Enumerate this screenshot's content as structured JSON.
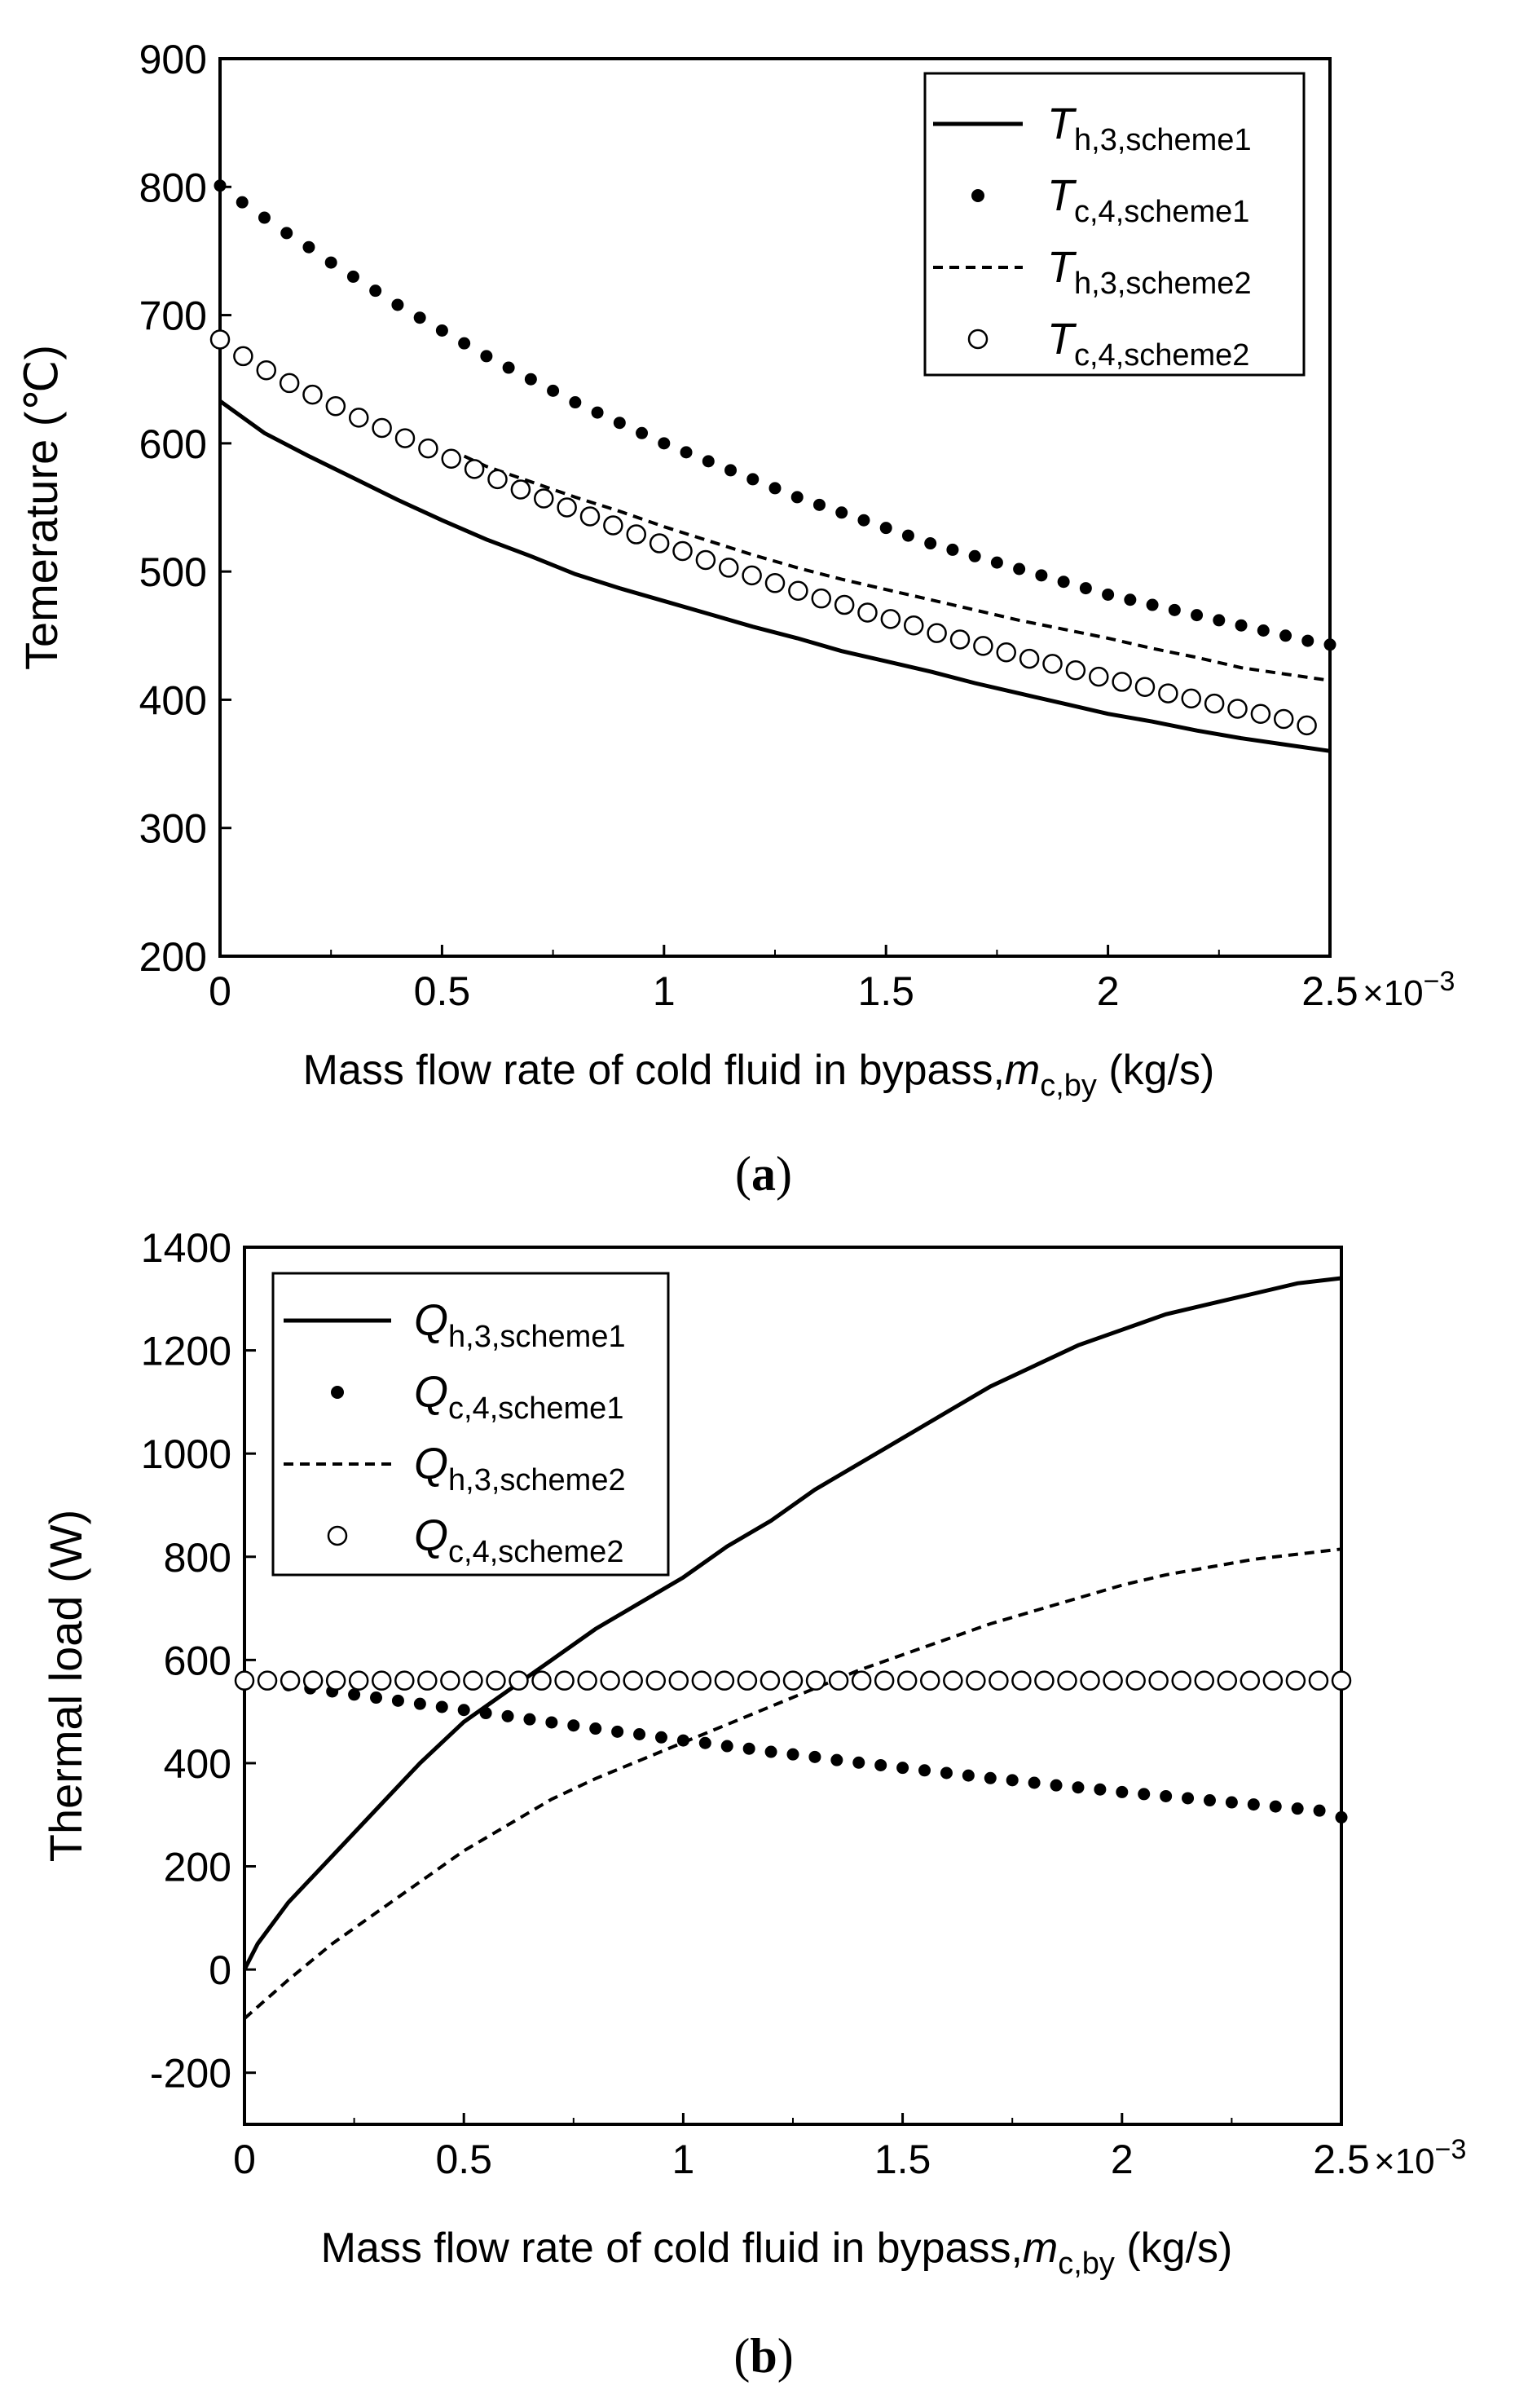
{
  "chart_data": [
    {
      "type": "line",
      "panel_label": "(a)",
      "title": "",
      "xlabel_prefix": "Mass flow rate of cold fluid in bypass,",
      "xlabel_var": "m",
      "xlabel_sub": "c,by",
      "xlabel_suffix": " (kg/s)",
      "ylabel": "Temerature (℃)",
      "x_multiplier_text": "×10",
      "x_multiplier_exp": "−3",
      "xlim": [
        0,
        2.5
      ],
      "ylim": [
        200,
        900
      ],
      "xticks": [
        0,
        0.5,
        1,
        1.5,
        2,
        2.5
      ],
      "xtick_labels": [
        "0",
        "0.5",
        "1",
        "1.5",
        "2",
        "2.5"
      ],
      "yticks": [
        200,
        300,
        400,
        500,
        600,
        700,
        800,
        900
      ],
      "ytick_labels": [
        "200",
        "300",
        "400",
        "500",
        "600",
        "700",
        "800",
        "900"
      ],
      "legend_position": "top-right",
      "series": [
        {
          "name": "T_h,3,scheme1",
          "label_var": "T",
          "label_sub": "h,3,scheme1",
          "style": "solid",
          "x": [
            0,
            0.1,
            0.2,
            0.3,
            0.4,
            0.5,
            0.6,
            0.7,
            0.8,
            0.9,
            1.0,
            1.1,
            1.2,
            1.3,
            1.4,
            1.5,
            1.6,
            1.7,
            1.8,
            1.9,
            2.0,
            2.1,
            2.2,
            2.3,
            2.4,
            2.5
          ],
          "values": [
            633,
            608,
            590,
            573,
            556,
            540,
            525,
            512,
            498,
            487,
            477,
            467,
            457,
            448,
            438,
            430,
            422,
            413,
            405,
            397,
            389,
            383,
            376,
            370,
            365,
            360
          ]
        },
        {
          "name": "T_c,4,scheme1",
          "label_var": "T",
          "label_sub": "c,4,scheme1",
          "style": "filled-dots",
          "x": [
            0,
            0.05,
            0.1,
            0.15,
            0.2,
            0.25,
            0.3,
            0.35,
            0.4,
            0.45,
            0.5,
            0.55,
            0.6,
            0.65,
            0.7,
            0.75,
            0.8,
            0.85,
            0.9,
            0.95,
            1.0,
            1.05,
            1.1,
            1.15,
            1.2,
            1.25,
            1.3,
            1.35,
            1.4,
            1.45,
            1.5,
            1.55,
            1.6,
            1.65,
            1.7,
            1.75,
            1.8,
            1.85,
            1.9,
            1.95,
            2.0,
            2.05,
            2.1,
            2.15,
            2.2,
            2.25,
            2.3,
            2.35,
            2.4,
            2.45,
            2.5
          ],
          "values": [
            801,
            788,
            776,
            764,
            753,
            741,
            730,
            719,
            708,
            698,
            688,
            678,
            668,
            659,
            650,
            641,
            632,
            624,
            616,
            608,
            600,
            593,
            586,
            579,
            572,
            565,
            558,
            552,
            546,
            540,
            534,
            528,
            522,
            517,
            512,
            507,
            502,
            497,
            492,
            487,
            482,
            478,
            474,
            470,
            466,
            462,
            458,
            454,
            450,
            446,
            443
          ]
        },
        {
          "name": "T_h,3,scheme2",
          "label_var": "T",
          "label_sub": "h,3,scheme2",
          "style": "dashed",
          "x": [
            0.55,
            0.6,
            0.7,
            0.8,
            0.9,
            1.0,
            1.1,
            1.2,
            1.3,
            1.4,
            1.5,
            1.6,
            1.7,
            1.8,
            1.9,
            2.0,
            2.1,
            2.2,
            2.3,
            2.4,
            2.5
          ],
          "values": [
            590,
            582,
            570,
            558,
            547,
            535,
            524,
            513,
            503,
            494,
            486,
            478,
            470,
            462,
            455,
            448,
            440,
            433,
            425,
            420,
            415
          ]
        },
        {
          "name": "T_c,4,scheme2",
          "label_var": "T",
          "label_sub": "c,4,scheme2",
          "style": "open-circles",
          "x": [
            0.0,
            0.0521,
            0.1042,
            0.1563,
            0.2083,
            0.2604,
            0.3125,
            0.3646,
            0.4167,
            0.4688,
            0.5208,
            0.5729,
            0.625,
            0.6771,
            0.7292,
            0.7813,
            0.8333,
            0.8854,
            0.9375,
            0.9896,
            1.0417,
            1.0938,
            1.1458,
            1.1979,
            1.25,
            1.3021,
            1.3542,
            1.4063,
            1.4583,
            1.5104,
            1.5625,
            1.6146,
            1.6667,
            1.7188,
            1.7708,
            1.8229,
            1.875,
            1.9271,
            1.9792,
            2.0313,
            2.0833,
            2.1354,
            2.1875,
            2.2396,
            2.2917,
            2.3438,
            2.3958,
            2.4479
          ],
          "values": [
            681,
            668,
            657,
            647,
            638,
            629,
            620,
            612,
            604,
            596,
            588,
            580,
            572,
            564,
            557,
            550,
            543,
            536,
            529,
            522,
            516,
            509,
            503,
            497,
            491,
            485,
            479,
            474,
            468,
            463,
            458,
            452,
            447,
            442,
            437,
            432,
            428,
            423,
            418,
            414,
            410,
            405,
            401,
            397,
            393,
            389,
            385,
            380
          ]
        }
      ]
    },
    {
      "type": "line",
      "panel_label": "(b)",
      "title": "",
      "xlabel_prefix": "Mass flow rate of cold fluid in bypass,",
      "xlabel_var": "m",
      "xlabel_sub": "c,by",
      "xlabel_suffix": " (kg/s)",
      "ylabel": "Thermal load (W)",
      "x_multiplier_text": "×10",
      "x_multiplier_exp": "−3",
      "xlim": [
        0,
        2.5
      ],
      "ylim": [
        -300,
        1400
      ],
      "xticks": [
        0,
        0.5,
        1,
        1.5,
        2,
        2.5
      ],
      "xtick_labels": [
        "0",
        "0.5",
        "1",
        "1.5",
        "2",
        "2.5"
      ],
      "yticks": [
        -200,
        0,
        200,
        400,
        600,
        800,
        1000,
        1200,
        1400
      ],
      "ytick_labels": [
        "-200",
        "0",
        "200",
        "400",
        "600",
        "800",
        "1000",
        "1200",
        "1400"
      ],
      "legend_position": "top-left",
      "series": [
        {
          "name": "Q_h,3,scheme1",
          "label_var": "Q",
          "label_sub": "h,3,scheme1",
          "style": "solid",
          "x": [
            0,
            0.03,
            0.1,
            0.2,
            0.3,
            0.4,
            0.5,
            0.6,
            0.7,
            0.8,
            0.9,
            1.0,
            1.1,
            1.2,
            1.3,
            1.4,
            1.5,
            1.6,
            1.7,
            1.8,
            1.9,
            2.0,
            2.1,
            2.2,
            2.3,
            2.4,
            2.5
          ],
          "values": [
            0,
            50,
            130,
            220,
            310,
            400,
            480,
            540,
            600,
            660,
            710,
            760,
            820,
            870,
            930,
            980,
            1030,
            1080,
            1130,
            1170,
            1210,
            1240,
            1270,
            1290,
            1310,
            1330,
            1340
          ]
        },
        {
          "name": "Q_c,4,scheme1",
          "label_var": "Q",
          "label_sub": "c,4,scheme1",
          "style": "filled-dots",
          "x": [
            0,
            0.05,
            0.1,
            0.15,
            0.2,
            0.25,
            0.3,
            0.35,
            0.4,
            0.45,
            0.5,
            0.55,
            0.6,
            0.65,
            0.7,
            0.75,
            0.8,
            0.85,
            0.9,
            0.95,
            1.0,
            1.05,
            1.1,
            1.15,
            1.2,
            1.25,
            1.3,
            1.35,
            1.4,
            1.45,
            1.5,
            1.55,
            1.6,
            1.65,
            1.7,
            1.75,
            1.8,
            1.85,
            1.9,
            1.95,
            2.0,
            2.05,
            2.1,
            2.15,
            2.2,
            2.25,
            2.3,
            2.35,
            2.4,
            2.45,
            2.5
          ],
          "values": [
            562,
            557,
            551,
            545,
            539,
            533,
            527,
            521,
            515,
            509,
            503,
            497,
            491,
            485,
            479,
            473,
            467,
            461,
            456,
            450,
            444,
            439,
            433,
            428,
            422,
            417,
            412,
            406,
            401,
            396,
            391,
            386,
            381,
            376,
            371,
            367,
            362,
            357,
            353,
            349,
            344,
            340,
            336,
            332,
            328,
            324,
            320,
            316,
            312,
            308,
            295
          ]
        },
        {
          "name": "Q_h,3,scheme2",
          "label_var": "Q",
          "label_sub": "h,3,scheme2",
          "style": "dashed",
          "x": [
            0,
            0.1,
            0.2,
            0.3,
            0.4,
            0.5,
            0.6,
            0.7,
            0.8,
            0.9,
            1.0,
            1.1,
            1.2,
            1.3,
            1.4,
            1.5,
            1.6,
            1.7,
            1.8,
            1.9,
            2.0,
            2.1,
            2.2,
            2.3,
            2.4,
            2.5
          ],
          "values": [
            -95,
            -20,
            50,
            110,
            170,
            230,
            280,
            330,
            370,
            405,
            440,
            475,
            510,
            545,
            580,
            610,
            640,
            670,
            695,
            720,
            745,
            765,
            780,
            795,
            805,
            815
          ]
        },
        {
          "name": "Q_c,4,scheme2",
          "label_var": "Q",
          "label_sub": "c,4,scheme2",
          "style": "open-circles",
          "x": [
            0.0,
            0.0521,
            0.1042,
            0.1563,
            0.2083,
            0.2604,
            0.3125,
            0.3646,
            0.4167,
            0.4688,
            0.5208,
            0.5729,
            0.625,
            0.6771,
            0.7292,
            0.7813,
            0.8333,
            0.8854,
            0.9375,
            0.9896,
            1.0417,
            1.0938,
            1.1458,
            1.1979,
            1.25,
            1.3021,
            1.3542,
            1.4063,
            1.4583,
            1.5104,
            1.5625,
            1.6146,
            1.6667,
            1.7188,
            1.7708,
            1.8229,
            1.875,
            1.9271,
            1.9792,
            2.0313,
            2.0833,
            2.1354,
            2.1875,
            2.2396,
            2.2917,
            2.3438,
            2.3958,
            2.4479,
            2.5
          ],
          "values": [
            560,
            560,
            560,
            560,
            560,
            560,
            560,
            560,
            560,
            560,
            560,
            560,
            560,
            560,
            560,
            560,
            560,
            560,
            560,
            560,
            560,
            560,
            560,
            560,
            560,
            560,
            560,
            560,
            560,
            560,
            560,
            560,
            560,
            560,
            560,
            560,
            560,
            560,
            560,
            560,
            560,
            560,
            560,
            560,
            560,
            560,
            560,
            560,
            560
          ]
        }
      ]
    }
  ]
}
